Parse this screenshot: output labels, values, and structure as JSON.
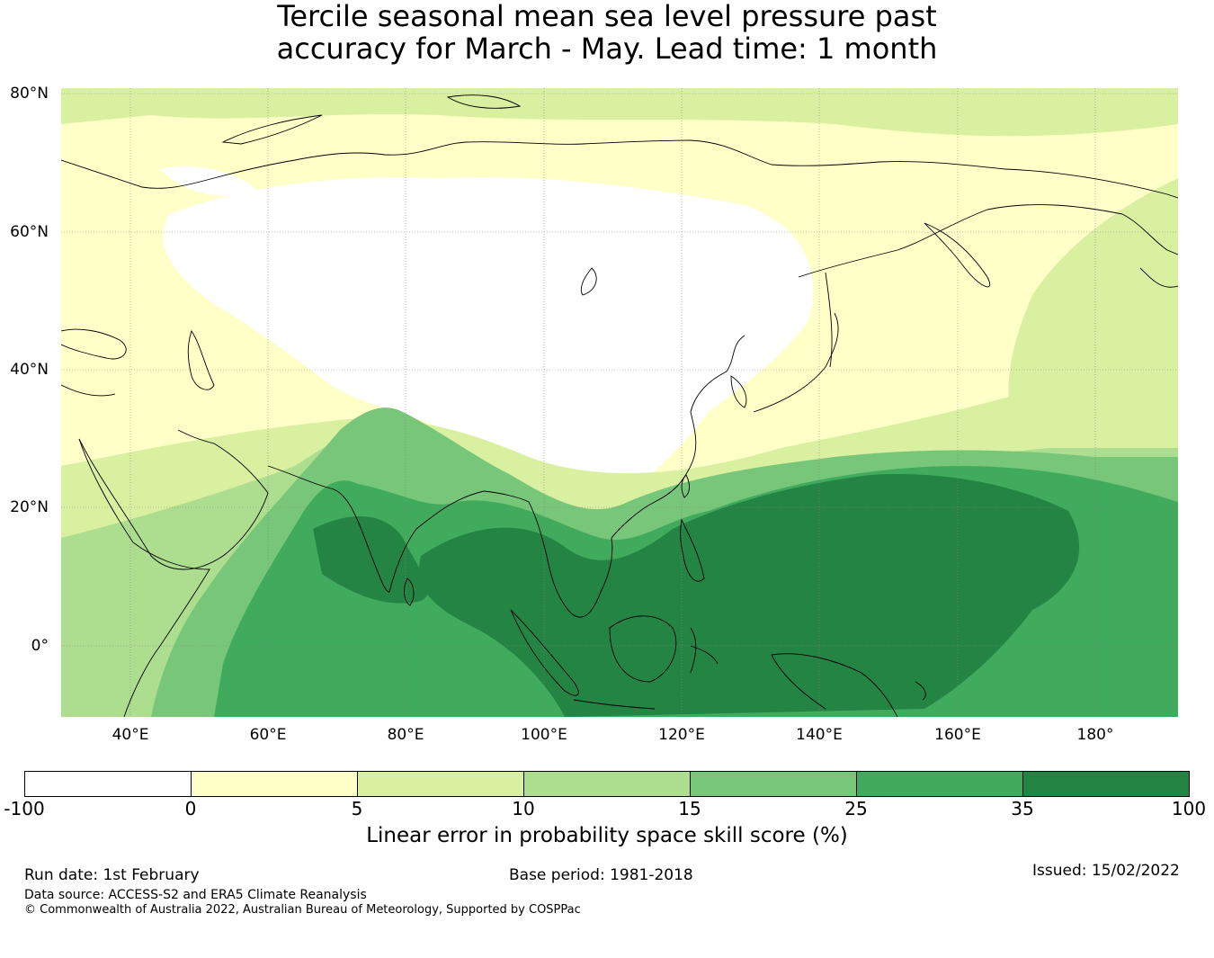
{
  "title": {
    "line1": "Tercile seasonal mean sea level pressure past",
    "line2": "accuracy for March - May. Lead time: 1 month"
  },
  "map": {
    "lat_labels": [
      "80°N",
      "60°N",
      "40°N",
      "20°N",
      "0°"
    ],
    "lon_labels": [
      "40°E",
      "60°E",
      "80°E",
      "100°E",
      "120°E",
      "140°E",
      "160°E",
      "180°"
    ],
    "extent": {
      "lon_min": 30,
      "lon_max": 192,
      "lat_min": -10,
      "lat_max": 81
    }
  },
  "colorbar": {
    "ticks": [
      "-100",
      "0",
      "5",
      "10",
      "15",
      "25",
      "35",
      "100"
    ],
    "colors": [
      "#ffffff",
      "#ffffc8",
      "#d9f0a0",
      "#addd8e",
      "#78c679",
      "#41ab5d",
      "#238443"
    ],
    "label": "Linear error in probability space skill score (%)"
  },
  "footer": {
    "run_date": "Run date: 1st February",
    "base_period": "Base period: 1981-2018",
    "issued": "Issued: 15/02/2022",
    "data_source": "Data source: ACCESS-S2 and ERA5 Climate Reanalysis",
    "copyright": "© Commonwealth of Australia 2022, Australian Bureau of Meteorology, Supported by COSPPac"
  }
}
